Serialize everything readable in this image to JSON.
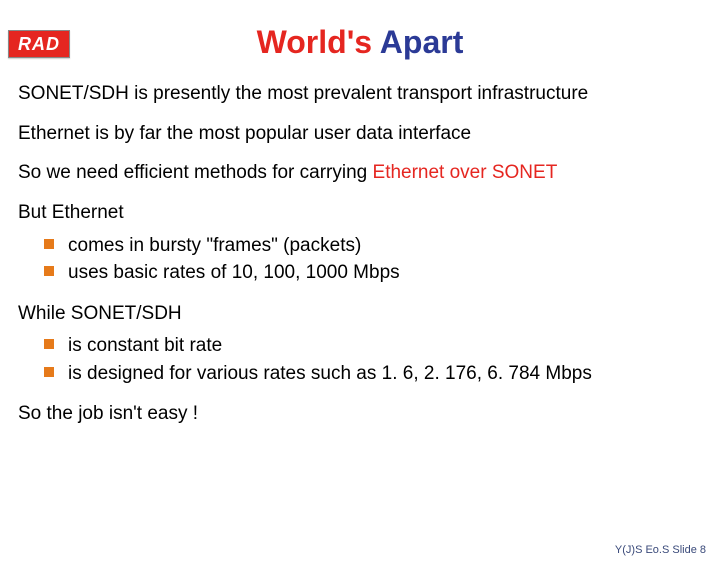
{
  "colors": {
    "accent_red": "#e52620",
    "title_blue": "#2b3a96",
    "bullet_orange": "#e67a1a",
    "text_black": "#000000",
    "footer_blue": "#3a4a7a"
  },
  "logo": {
    "text": "RAD"
  },
  "title": {
    "word1": "World's",
    "word2": "Apart"
  },
  "paras": {
    "p1": "SONET/SDH is presently the most prevalent transport infrastructure",
    "p2": "Ethernet is by far the most popular user data interface",
    "p3_a": "So we need efficient methods for carrying ",
    "p3_b": "Ethernet over SONET",
    "p4": "But Ethernet",
    "p5": "While SONET/SDH",
    "p6": "So the job isn't easy !"
  },
  "bullets1": [
    "comes in bursty \"frames\" (packets)",
    "uses basic rates of 10, 100, 1000 Mbps"
  ],
  "bullets2": [
    "is constant bit rate",
    "is designed for various rates such as 1. 6, 2. 176, 6. 784 Mbps"
  ],
  "footer": "Y(J)S Eo.S  Slide 8"
}
